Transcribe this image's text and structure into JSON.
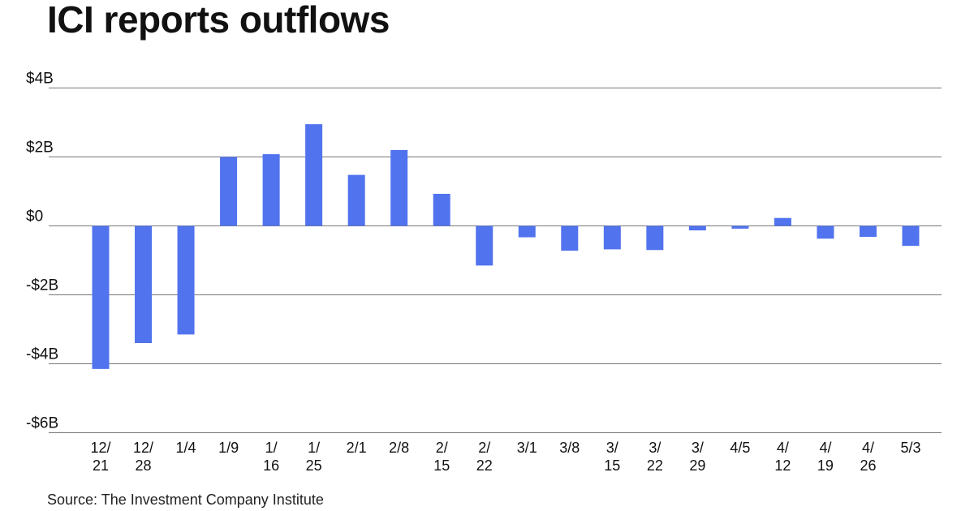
{
  "title": "ICI reports outflows",
  "source": "Source: The Investment Company Institute",
  "chart_data": {
    "type": "bar",
    "categories": [
      [
        "12/",
        "21"
      ],
      [
        "12/",
        "28"
      ],
      [
        "1/4"
      ],
      [
        "1/9"
      ],
      [
        "1/",
        "16"
      ],
      [
        "1/",
        "25"
      ],
      [
        "2/1"
      ],
      [
        "2/8"
      ],
      [
        "2/",
        "15"
      ],
      [
        "2/",
        "22"
      ],
      [
        "3/1"
      ],
      [
        "3/8"
      ],
      [
        "3/",
        "15"
      ],
      [
        "3/",
        "22"
      ],
      [
        "3/",
        "29"
      ],
      [
        "4/5"
      ],
      [
        "4/",
        "12"
      ],
      [
        "4/",
        "19"
      ],
      [
        "4/",
        "26"
      ],
      [
        "5/3"
      ]
    ],
    "values": [
      -4.15,
      -3.4,
      -3.15,
      2.0,
      2.08,
      2.95,
      1.48,
      2.2,
      0.93,
      -1.15,
      -0.33,
      -0.72,
      -0.68,
      -0.7,
      -0.13,
      -0.08,
      0.23,
      -0.37,
      -0.32,
      -0.58
    ],
    "y_ticks": [
      {
        "value": 4,
        "label": "$4B"
      },
      {
        "value": 2,
        "label": "$2B"
      },
      {
        "value": 0,
        "label": "$0"
      },
      {
        "value": -2,
        "label": "-$2B"
      },
      {
        "value": -4,
        "label": "-$4B"
      },
      {
        "value": -6,
        "label": "-$6B"
      }
    ],
    "ylim": [
      -6,
      4
    ],
    "unit": "$B",
    "bar_color": "#5173ee",
    "grid": true
  }
}
